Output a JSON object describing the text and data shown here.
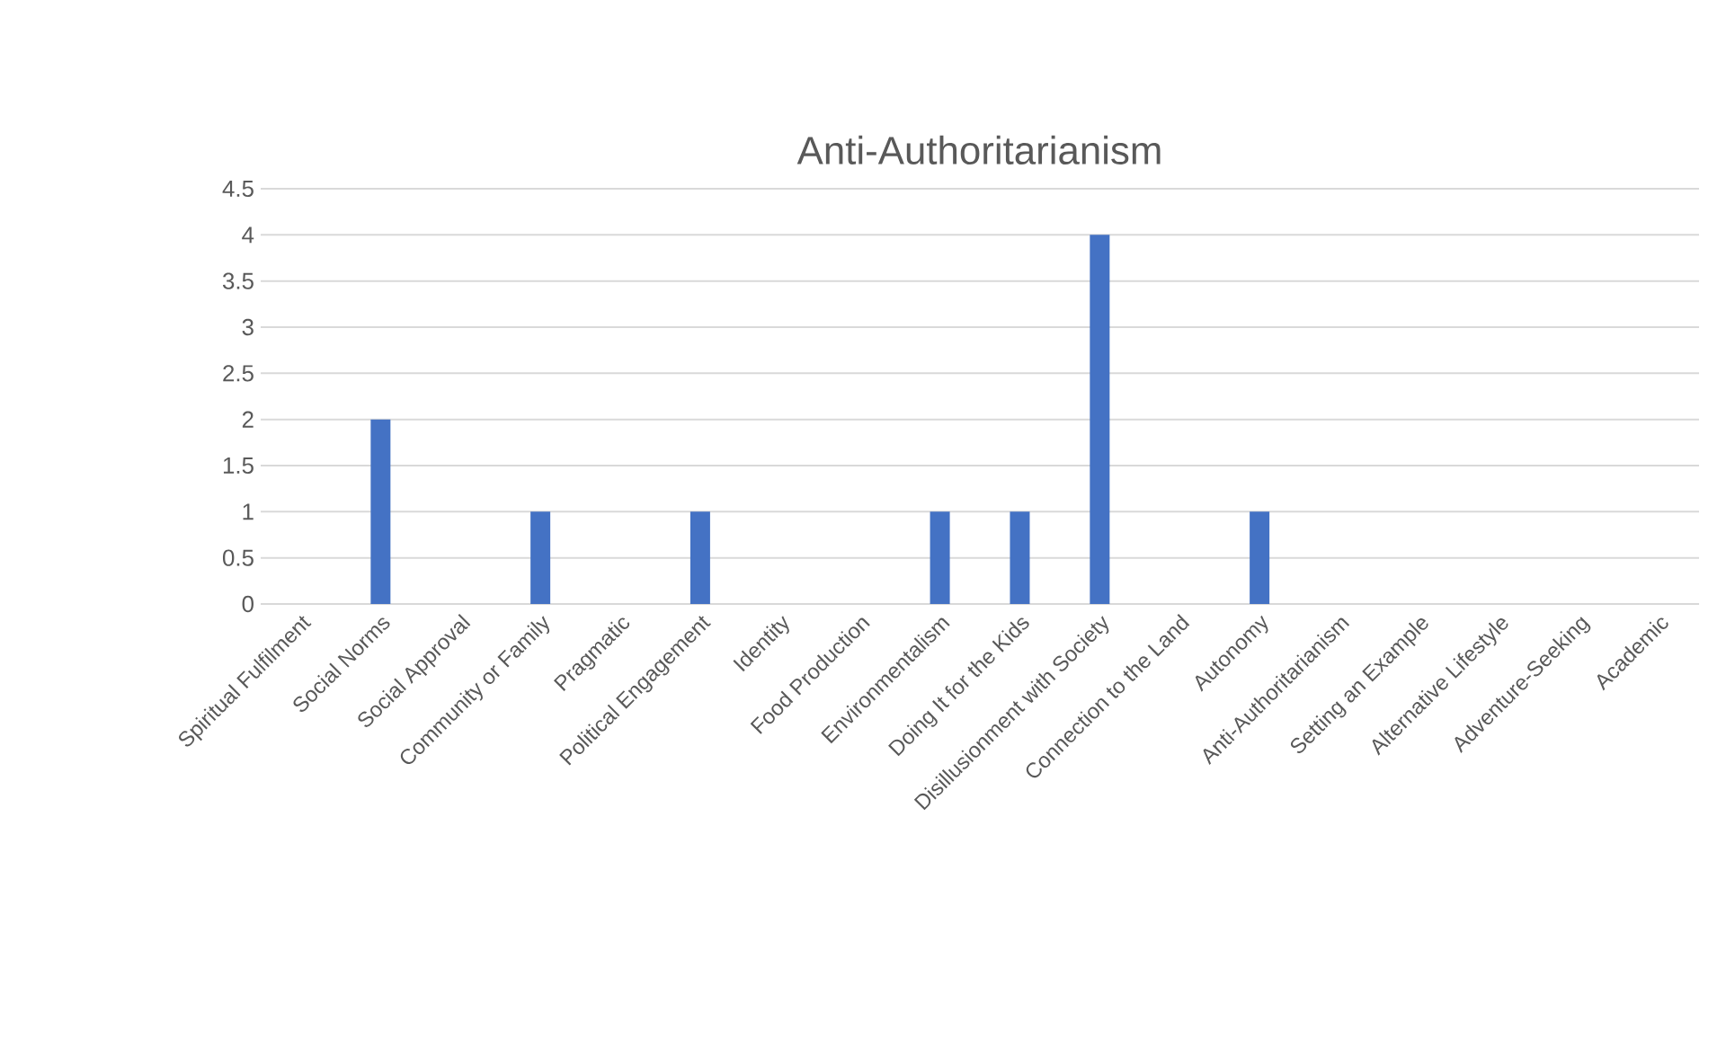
{
  "chart_data": {
    "type": "bar",
    "title": "Anti-Authoritarianism",
    "categories": [
      "Spiritual Fulfilment",
      "Social Norms",
      "Social Approval",
      "Community or Family",
      "Pragmatic",
      "Political Engagement",
      "Identity",
      "Food Production",
      "Environmentalism",
      "Doing It for the Kids",
      "Disillusionment with Society",
      "Connection to the Land",
      "Autonomy",
      "Anti-Authoritarianism",
      "Setting an Example",
      "Alternative Lifestyle",
      "Adventure-Seeking",
      "Academic"
    ],
    "values": [
      0,
      2,
      0,
      1,
      0,
      1,
      0,
      0,
      1,
      1,
      4,
      0,
      1,
      0,
      0,
      0,
      0,
      0
    ],
    "color": "#4472c4",
    "ylim": [
      0,
      4.5
    ],
    "yticks": [
      0,
      0.5,
      1,
      1.5,
      2,
      2.5,
      3,
      3.5,
      4,
      4.5
    ],
    "grid": "y"
  }
}
